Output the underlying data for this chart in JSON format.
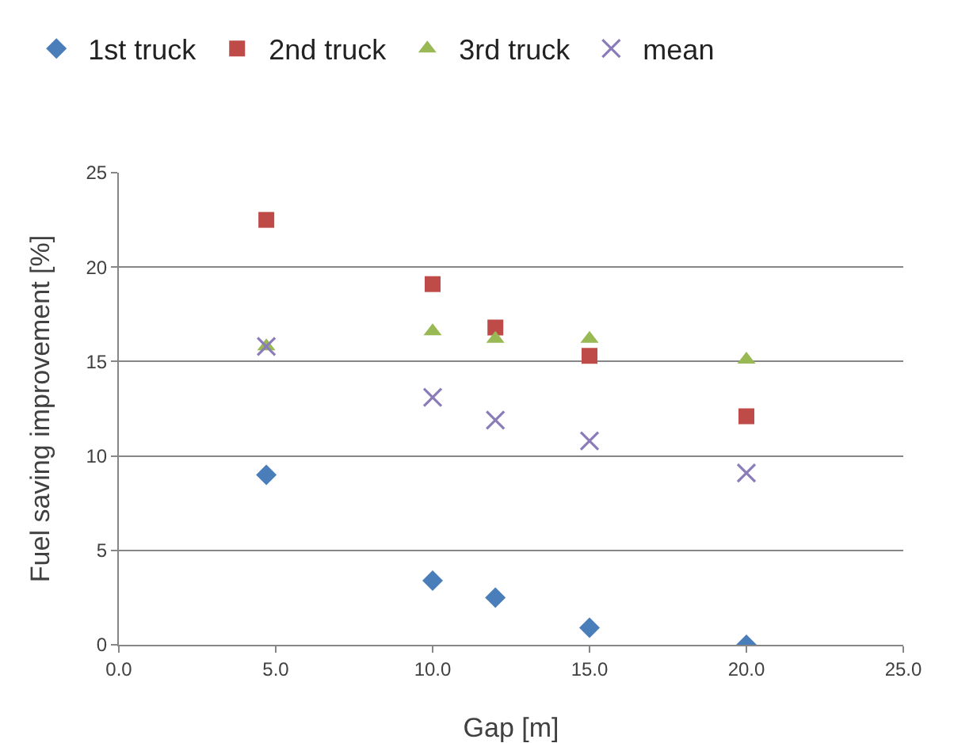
{
  "chart_data": {
    "type": "scatter",
    "xlabel": "Gap [m]",
    "ylabel": "Fuel saving improvement [%]",
    "xlim": [
      0,
      25
    ],
    "xticks": [
      {
        "value": 0,
        "label": "0.0"
      },
      {
        "value": 5,
        "label": "5.0"
      },
      {
        "value": 10,
        "label": "10.0"
      },
      {
        "value": 15,
        "label": "15.0"
      },
      {
        "value": 20,
        "label": "20.0"
      },
      {
        "value": 25,
        "label": "25.0"
      }
    ],
    "ylim": [
      0,
      25
    ],
    "yticks": [
      0,
      5,
      10,
      15,
      20,
      25
    ],
    "grid": "y",
    "legend": "top",
    "x": [
      4.7,
      10,
      12,
      15,
      20
    ],
    "series": [
      {
        "name": "1st truck",
        "color": "#4a7ebb",
        "marker": "diamond",
        "values": [
          9.0,
          3.4,
          2.5,
          0.9,
          0.0
        ]
      },
      {
        "name": "2nd truck",
        "color": "#be4b48",
        "marker": "square",
        "values": [
          22.5,
          19.1,
          16.8,
          15.3,
          12.1
        ]
      },
      {
        "name": "3rd truck",
        "color": "#98b954",
        "marker": "triangle",
        "values": [
          15.8,
          16.6,
          16.2,
          16.2,
          15.1
        ]
      },
      {
        "name": "mean",
        "color": "#8a7cb8",
        "marker": "cross",
        "values": [
          15.8,
          13.1,
          11.9,
          10.8,
          9.1
        ]
      }
    ]
  }
}
